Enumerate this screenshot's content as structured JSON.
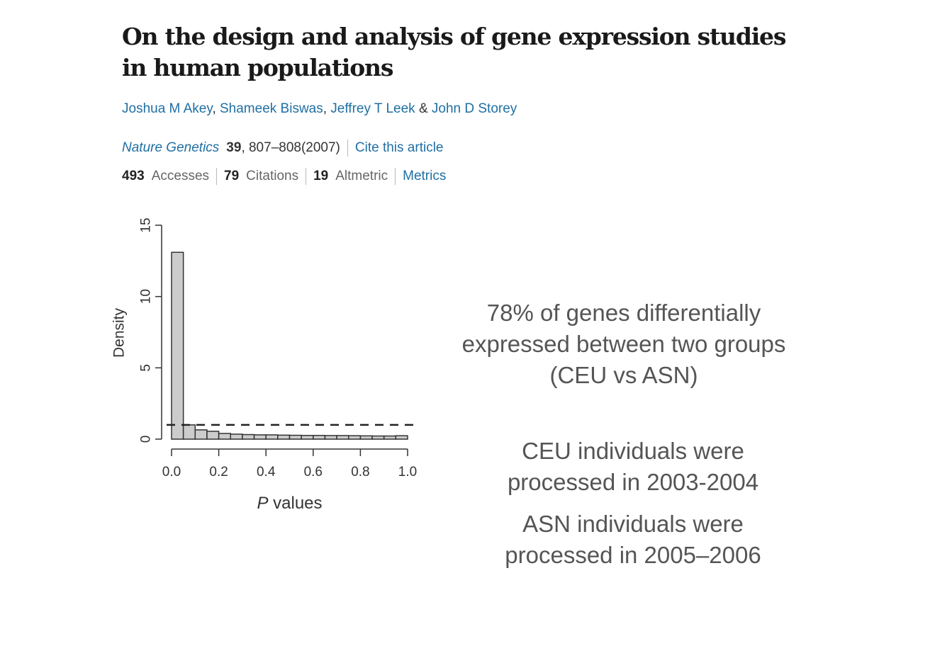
{
  "article": {
    "title_line1": "On the design and analysis of gene expression studies",
    "title_line2": "in human populations",
    "authors": [
      "Joshua M Akey",
      "Shameek Biswas",
      "Jeffrey T Leek",
      "John D Storey"
    ],
    "author_sep1": ",",
    "author_sep2": ",",
    "author_sep3": "&",
    "journal_name": "Nature Genetics",
    "volume": "39",
    "pages_year": ", 807–808(2007)",
    "cite_label": "Cite this article",
    "metrics": {
      "accesses_count": "493",
      "accesses_label": "Accesses",
      "citations_count": "79",
      "citations_label": "Citations",
      "altmetric_count": "19",
      "altmetric_label": "Altmetric",
      "metrics_link": "Metrics"
    }
  },
  "chart_data": {
    "type": "bar",
    "title": "",
    "xlabel_italic": "P",
    "xlabel_rest": " values",
    "ylabel": "Density",
    "xlim": [
      0,
      1
    ],
    "ylim": [
      0,
      15
    ],
    "x_ticks": [
      "0.0",
      "0.2",
      "0.4",
      "0.6",
      "0.8",
      "1.0"
    ],
    "y_ticks": [
      "0",
      "5",
      "10",
      "15"
    ],
    "bin_width": 0.05,
    "values": [
      13.1,
      1.0,
      0.65,
      0.55,
      0.4,
      0.35,
      0.32,
      0.3,
      0.3,
      0.28,
      0.27,
      0.26,
      0.26,
      0.25,
      0.25,
      0.24,
      0.23,
      0.22,
      0.22,
      0.24
    ],
    "reference_line": 1.0,
    "bar_color": "#cccccc",
    "edge_color": "#333333"
  },
  "notes": {
    "summary_line1": "78% of genes differentially",
    "summary_line2": "expressed between two groups",
    "summary_line3": "(CEU vs ASN)",
    "ceu_line1": "CEU individuals were",
    "ceu_line2": "processed in 2003-2004",
    "asn_line1": "ASN individuals were",
    "asn_line2": "processed in 2005–2006"
  }
}
